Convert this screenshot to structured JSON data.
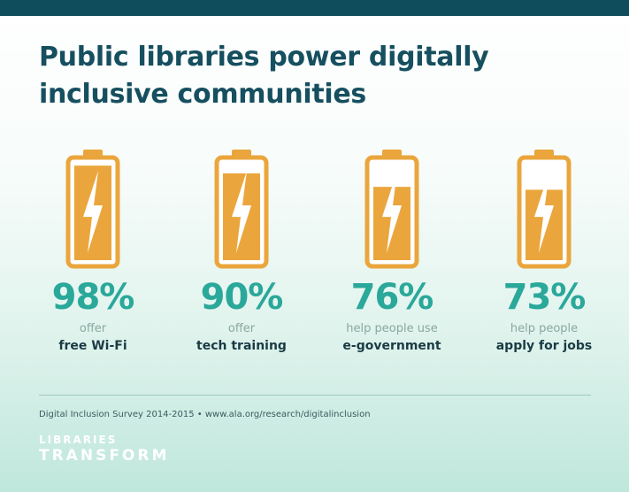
{
  "header": {
    "title": "Public libraries power digitally inclusive communities"
  },
  "stats": [
    {
      "value": "98%",
      "caption": "offer",
      "emphasis": "free Wi-Fi",
      "charge_fraction": 0.98
    },
    {
      "value": "90%",
      "caption": "offer",
      "emphasis": "tech training",
      "charge_fraction": 0.9
    },
    {
      "value": "76%",
      "caption": "help people use",
      "emphasis": "e-government",
      "charge_fraction": 0.76
    },
    {
      "value": "73%",
      "caption": "help people",
      "emphasis": "apply for jobs",
      "charge_fraction": 0.73
    }
  ],
  "icons": {
    "battery": "battery-icon",
    "bolt": "lightning-bolt-icon"
  },
  "colors": {
    "top_bar": "#0f4c5c",
    "title": "#164f5f",
    "percent": "#2aa89a",
    "battery_fill": "#eaa63c",
    "battery_outline": "#eaa63c",
    "emphasis_text": "#1b3b44"
  },
  "footer": {
    "source": "Digital Inclusion Survey 2014-2015 • www.ala.org/research/digitalinclusion",
    "logo_line1": "LIBRARIES",
    "logo_line2": "TRANSFORM"
  }
}
